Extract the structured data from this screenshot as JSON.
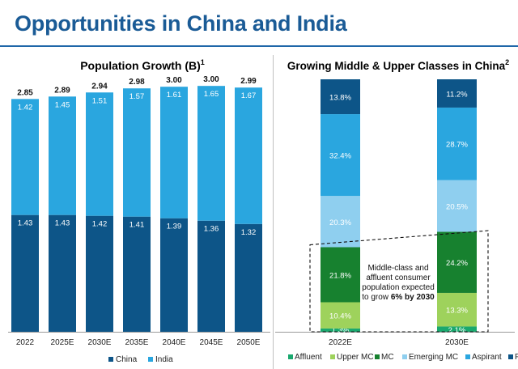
{
  "page": {
    "title": "Opportunities in China and India"
  },
  "chart_data": [
    {
      "type": "bar",
      "stacked": true,
      "title": "Population Growth (B)",
      "title_sup": "1",
      "categories": [
        "2022",
        "2025E",
        "2030E",
        "2035E",
        "2040E",
        "2045E",
        "2050E"
      ],
      "series": [
        {
          "name": "China",
          "color": "#0d5588",
          "values": [
            1.43,
            1.43,
            1.42,
            1.41,
            1.39,
            1.36,
            1.32
          ]
        },
        {
          "name": "India",
          "color": "#2aa6df",
          "values": [
            1.42,
            1.45,
            1.51,
            1.57,
            1.61,
            1.65,
            1.67
          ]
        }
      ],
      "totals": [
        "2.85",
        "2.89",
        "2.94",
        "2.98",
        "3.00",
        "3.00",
        "2.99"
      ],
      "ylim": [
        0,
        3.2
      ],
      "legend": "bottom"
    },
    {
      "type": "bar",
      "stacked": true,
      "percent": true,
      "title": "Growing Middle & Upper Classes in China",
      "title_sup": "2",
      "categories": [
        "2022E",
        "2030E"
      ],
      "series": [
        {
          "name": "Affluent",
          "color": "#1aa86e",
          "values": [
            1.3,
            2.1
          ]
        },
        {
          "name": "Upper MC",
          "color": "#9ed25c",
          "values": [
            10.4,
            13.3
          ]
        },
        {
          "name": "MC",
          "color": "#17812f",
          "values": [
            21.8,
            24.2
          ]
        },
        {
          "name": "Emerging MC",
          "color": "#8fcfef",
          "values": [
            20.3,
            20.5
          ]
        },
        {
          "name": "Aspirant",
          "color": "#2aa6df",
          "values": [
            32.4,
            28.7
          ]
        },
        {
          "name": "Poor",
          "color": "#0d5588",
          "values": [
            13.8,
            11.2
          ]
        }
      ],
      "annotation": {
        "lines": [
          "Middle-class and",
          "affluent consumer",
          "population expected"
        ],
        "last_line_prefix": "to grow ",
        "last_line_bold": "6% by 2030"
      },
      "legend": "bottom"
    }
  ]
}
